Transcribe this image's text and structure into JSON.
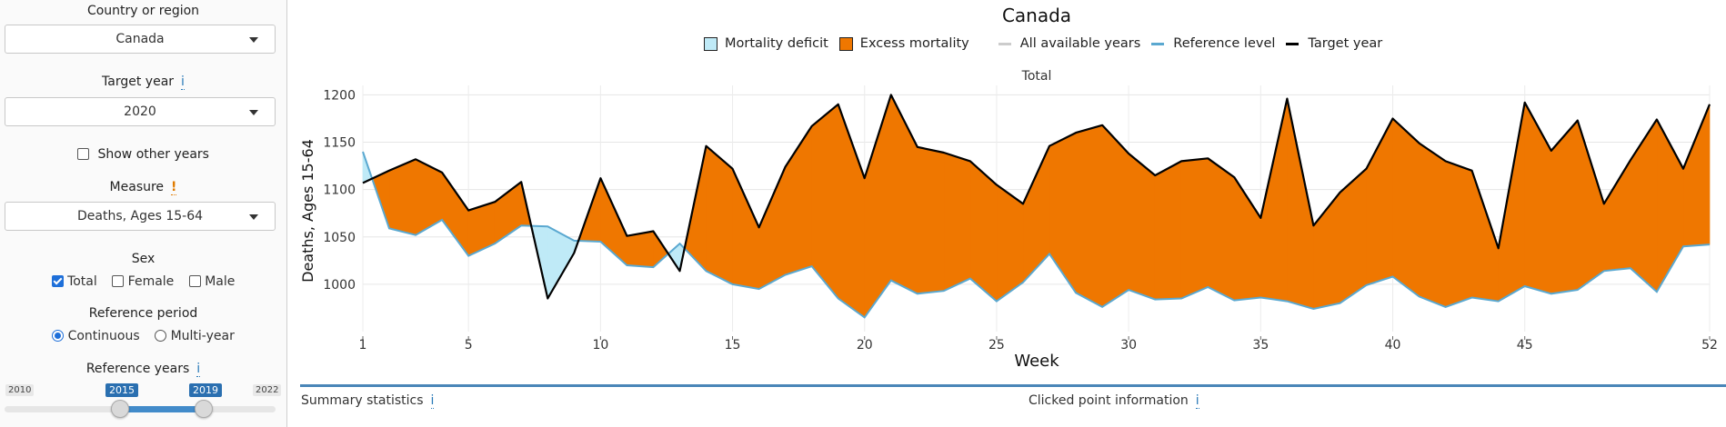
{
  "sidebar": {
    "country_label": "Country or region",
    "country_value": "Canada",
    "target_year_label": "Target year",
    "target_year_value": "2020",
    "show_other_years_label": "Show other years",
    "measure_label": "Measure",
    "measure_value": "Deaths, Ages 15-64",
    "sex_label": "Sex",
    "sex_options": [
      "Total",
      "Female",
      "Male"
    ],
    "reference_period_label": "Reference period",
    "reference_period_options": [
      "Continuous",
      "Multi-year"
    ],
    "reference_years_label": "Reference years",
    "slider": {
      "min": "2010",
      "max": "2022",
      "from": "2015",
      "to": "2019"
    },
    "info_glyph": "i",
    "warn_glyph": "!"
  },
  "legend": {
    "deficit": "Mortality deficit",
    "excess": "Excess mortality",
    "all_years": "All available years",
    "reference": "Reference level",
    "target": "Target year"
  },
  "colors": {
    "deficit": "#bfeaf7",
    "excess": "#ef7700",
    "reference": "#5aa8d0",
    "target": "#000000",
    "all_years": "#cccccc"
  },
  "bottom": {
    "summary": "Summary statistics",
    "clicked": "Clicked point information"
  },
  "chart_data": {
    "type": "area",
    "title": "Canada",
    "subtitle": "Total",
    "xlabel": "Week",
    "ylabel": "Deaths, Ages 15-64",
    "xlim": [
      1,
      52
    ],
    "ylim": [
      950,
      1210
    ],
    "xticks": [
      1,
      5,
      10,
      15,
      20,
      25,
      30,
      35,
      40,
      45,
      52
    ],
    "yticks": [
      1000,
      1050,
      1100,
      1150,
      1200
    ],
    "x": [
      1,
      2,
      3,
      4,
      5,
      6,
      7,
      8,
      9,
      10,
      11,
      12,
      13,
      14,
      15,
      16,
      17,
      18,
      19,
      20,
      21,
      22,
      23,
      24,
      25,
      26,
      27,
      28,
      29,
      30,
      31,
      32,
      33,
      34,
      35,
      36,
      37,
      38,
      39,
      40,
      41,
      42,
      43,
      44,
      45,
      46,
      47,
      48,
      49,
      50,
      51,
      52
    ],
    "series": [
      {
        "name": "Target year",
        "values": [
          1107,
          1120,
          1132,
          1118,
          1078,
          1087,
          1108,
          985,
          1033,
          1112,
          1051,
          1056,
          1014,
          1146,
          1122,
          1060,
          1124,
          1167,
          1190,
          1112,
          1200,
          1145,
          1139,
          1130,
          1105,
          1085,
          1146,
          1160,
          1168,
          1138,
          1115,
          1130,
          1133,
          1113,
          1070,
          1196,
          1062,
          1097,
          1122,
          1175,
          1149,
          1130,
          1120,
          1038,
          1192,
          1141,
          1173,
          1085,
          1131,
          1174,
          1122,
          1190
        ]
      },
      {
        "name": "Reference level",
        "values": [
          1140,
          1059,
          1052,
          1068,
          1030,
          1043,
          1062,
          1061,
          1046,
          1045,
          1020,
          1018,
          1043,
          1014,
          1000,
          995,
          1010,
          1019,
          985,
          965,
          1004,
          990,
          993,
          1006,
          982,
          1002,
          1032,
          991,
          976,
          994,
          984,
          985,
          997,
          983,
          986,
          982,
          974,
          980,
          999,
          1008,
          987,
          976,
          986,
          982,
          998,
          990,
          994,
          1014,
          1017,
          992,
          1040,
          1042
        ]
      }
    ]
  }
}
